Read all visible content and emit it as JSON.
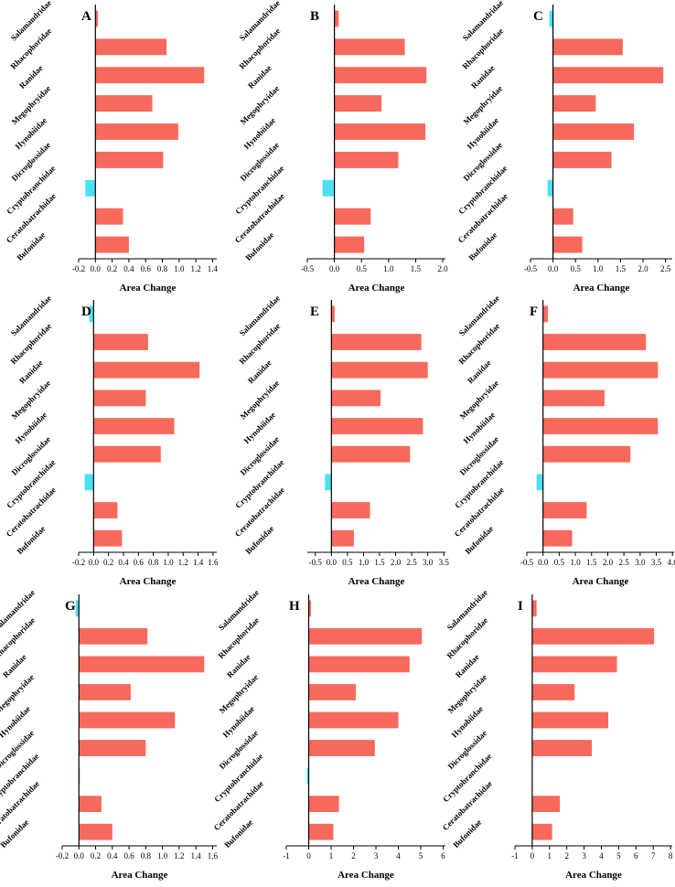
{
  "figure": {
    "families": [
      "Salamandridae",
      "Rhacophoridae",
      "Ranidae",
      "Megophryidae",
      "Hynobiidae",
      "Dicroglossidae",
      "Cryptobranchidae",
      "Ceratobatrachidae",
      "Bufonidae"
    ],
    "colors": {
      "positive": "#F8695D",
      "negative": "#4BE1F5"
    }
  },
  "chart_data": [
    {
      "type": "bar",
      "panel": "A",
      "categories": [
        "Salamandridae",
        "Rhacophoridae",
        "Ranidae",
        "Megophryidae",
        "Hynobiidae",
        "Dicroglossidae",
        "Cryptobranchidae",
        "Ceratobatrachidae",
        "Bufonidae"
      ],
      "values": [
        0.03,
        0.85,
        1.3,
        0.68,
        0.99,
        0.81,
        -0.12,
        0.33,
        0.4
      ],
      "xlabel": "Area Change",
      "xlim": [
        -0.2,
        1.45
      ],
      "ticks": [
        -0.2,
        0.0,
        0.2,
        0.4,
        0.6,
        0.8,
        1.0,
        1.2,
        1.4
      ],
      "tick_labels": [
        "-0.2",
        "0.0",
        "0.2",
        "0.4",
        "0.6",
        "0.8",
        "1.0",
        "1.2",
        "1.4"
      ]
    },
    {
      "type": "bar",
      "panel": "B",
      "categories": [
        "Salamandridae",
        "Rhacophoridae",
        "Ranidae",
        "Megophryidae",
        "Hynobiidae",
        "Dicroglossidae",
        "Cryptobranchidae",
        "Ceratobatrachidae",
        "Bufonidae"
      ],
      "values": [
        0.08,
        1.3,
        1.7,
        0.87,
        1.68,
        1.18,
        -0.22,
        0.67,
        0.55
      ],
      "xlabel": "Area Change",
      "xlim": [
        -0.5,
        2.05
      ],
      "ticks": [
        -0.5,
        0.0,
        0.5,
        1.0,
        1.5,
        2.0
      ],
      "tick_labels": [
        "-0.5",
        "0.0",
        "0.5",
        "1.0",
        "1.5",
        "2.0"
      ]
    },
    {
      "type": "bar",
      "panel": "C",
      "categories": [
        "Salamandridae",
        "Rhacophoridae",
        "Ranidae",
        "Megophryidae",
        "Hynobiidae",
        "Dicroglossidae",
        "Cryptobranchidae",
        "Ceratobatrachidae",
        "Bufonidae"
      ],
      "values": [
        -0.08,
        1.55,
        2.45,
        0.95,
        1.8,
        1.3,
        -0.12,
        0.45,
        0.65
      ],
      "xlabel": "Area Change",
      "xlim": [
        -0.5,
        2.65
      ],
      "ticks": [
        -0.5,
        0.0,
        0.5,
        1.0,
        1.5,
        2.0,
        2.5
      ],
      "tick_labels": [
        "-0.5",
        "0.0",
        "0.5",
        "1.0",
        "1.5",
        "2.0",
        "2.5"
      ]
    },
    {
      "type": "bar",
      "panel": "D",
      "categories": [
        "Salamandridae",
        "Rhacophoridae",
        "Ranidae",
        "Megophryidae",
        "Hynobiidae",
        "Dicroglossidae",
        "Cryptobranchidae",
        "Ceratobatrachidae",
        "Bufonidae"
      ],
      "values": [
        -0.06,
        0.73,
        1.42,
        0.7,
        1.08,
        0.9,
        -0.12,
        0.32,
        0.38
      ],
      "xlabel": "Area Change",
      "xlim": [
        -0.2,
        1.65
      ],
      "ticks": [
        -0.2,
        0.0,
        0.2,
        0.4,
        0.6,
        0.8,
        1.0,
        1.2,
        1.4,
        1.6
      ],
      "tick_labels": [
        "-0.2",
        "0.0",
        "0.2",
        "0.4",
        "0.6",
        "0.8",
        "1.0",
        "1.2",
        "1.4",
        "1.6"
      ]
    },
    {
      "type": "bar",
      "panel": "E",
      "categories": [
        "Salamandridae",
        "Rhacophoridae",
        "Ranidae",
        "Megophryidae",
        "Hynobiidae",
        "Dicroglossidae",
        "Cryptobranchidae",
        "Ceratobatrachidae",
        "Bufonidae"
      ],
      "values": [
        0.1,
        2.8,
        3.0,
        1.53,
        2.85,
        2.45,
        -0.2,
        1.2,
        0.7
      ],
      "xlabel": "Area Change",
      "xlim": [
        -0.75,
        3.55
      ],
      "ticks": [
        -0.5,
        0.0,
        0.5,
        1.0,
        1.5,
        2.0,
        2.5,
        3.0,
        3.5
      ],
      "tick_labels": [
        "-0.5",
        "0.0",
        "0.5",
        "1.0",
        "1.5",
        "2.0",
        "2.5",
        "3.0",
        "3.5"
      ]
    },
    {
      "type": "bar",
      "panel": "F",
      "categories": [
        "Salamandridae",
        "Rhacophoridae",
        "Ranidae",
        "Megophryidae",
        "Hynobiidae",
        "Dicroglossidae",
        "Cryptobranchidae",
        "Ceratobatrachidae",
        "Bufonidae"
      ],
      "values": [
        0.15,
        3.18,
        3.55,
        1.9,
        3.55,
        2.7,
        -0.2,
        1.35,
        0.9
      ],
      "xlabel": "Area Change",
      "xlim": [
        -0.5,
        4.05
      ],
      "ticks": [
        -0.5,
        0.0,
        0.5,
        1.0,
        1.5,
        2.0,
        2.5,
        3.0,
        3.5,
        4.0
      ],
      "tick_labels": [
        "-0.5",
        "0.0",
        "0.5",
        "1.0",
        "1.5",
        "2.0",
        "2.5",
        "3.0",
        "3.5",
        "4.0"
      ]
    },
    {
      "type": "bar",
      "panel": "G",
      "categories": [
        "Salamandridae",
        "Rhacophoridae",
        "Ranidae",
        "Megophryidae",
        "Hynobiidae",
        "Dicroglossidae",
        "Cryptobranchidae",
        "Ceratobatrachidae",
        "Bufonidae"
      ],
      "values": [
        -0.04,
        0.82,
        1.5,
        0.62,
        1.15,
        0.8,
        0.01,
        0.27,
        0.4
      ],
      "xlabel": "Area Change",
      "xlim": [
        -0.2,
        1.65
      ],
      "ticks": [
        -0.2,
        0.0,
        0.2,
        0.4,
        0.6,
        0.8,
        1.0,
        1.2,
        1.4,
        1.6
      ],
      "tick_labels": [
        "-0.2",
        "0.0",
        "0.2",
        "0.4",
        "0.6",
        "0.8",
        "1.0",
        "1.2",
        "1.4",
        "1.6"
      ]
    },
    {
      "type": "bar",
      "panel": "H",
      "categories": [
        "Salamandridae",
        "Rhacophoridae",
        "Ranidae",
        "Megophryidae",
        "Hynobiidae",
        "Dicroglossidae",
        "Cryptobranchidae",
        "Ceratobatrachidae",
        "Bufonidae"
      ],
      "values": [
        0.1,
        5.05,
        4.5,
        2.1,
        4.0,
        2.95,
        -0.08,
        1.35,
        1.1
      ],
      "xlabel": "Area Change",
      "xlim": [
        -1.0,
        6.1
      ],
      "ticks": [
        -1,
        0,
        1,
        2,
        3,
        4,
        5,
        6
      ],
      "tick_labels": [
        "-1",
        "0",
        "1",
        "2",
        "3",
        "4",
        "5",
        "6"
      ]
    },
    {
      "type": "bar",
      "panel": "I",
      "categories": [
        "Salamandridae",
        "Rhacophoridae",
        "Ranidae",
        "Megophryidae",
        "Hynobiidae",
        "Dicroglossidae",
        "Cryptobranchidae",
        "Ceratobatrachidae",
        "Bufonidae"
      ],
      "values": [
        0.25,
        7.05,
        4.9,
        2.45,
        4.4,
        3.45,
        0.0,
        1.6,
        1.15
      ],
      "xlabel": "Area Change",
      "xlim": [
        -1.0,
        8.1
      ],
      "ticks": [
        -1,
        0,
        1,
        2,
        3,
        4,
        5,
        6,
        7,
        8
      ],
      "tick_labels": [
        "-1",
        "0",
        "1",
        "2",
        "3",
        "4",
        "5",
        "6",
        "7",
        "8"
      ]
    }
  ]
}
